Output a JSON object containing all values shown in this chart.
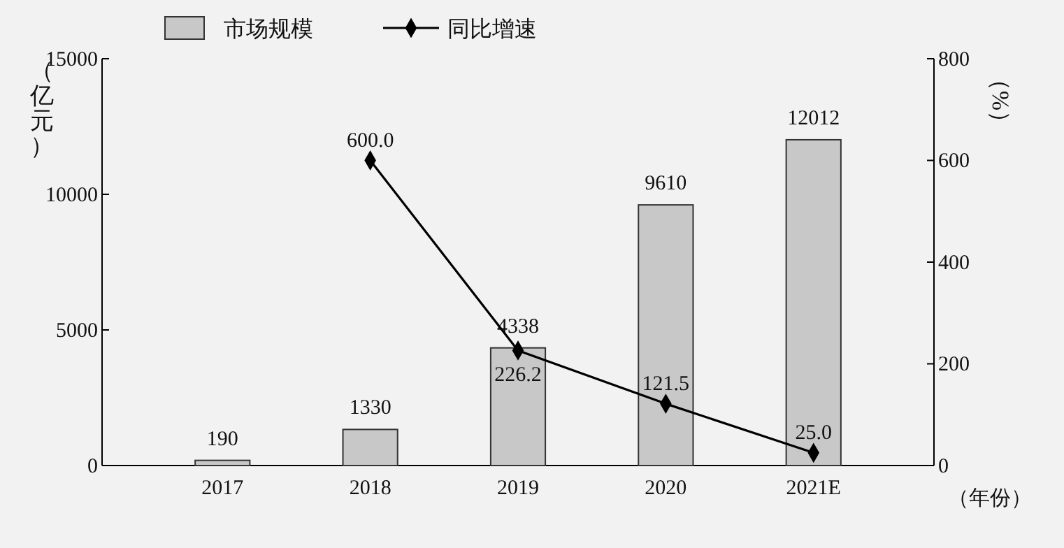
{
  "chart_data": {
    "type": "bar",
    "categories": [
      "2017",
      "2018",
      "2019",
      "2020",
      "2021E"
    ],
    "ylabel": "（亿元）",
    "y2label": "（%）",
    "xlabel": "（年份）",
    "series": [
      {
        "name": "市场规模",
        "color": "#c8c8c8",
        "values": [
          190,
          1330,
          4338,
          9610,
          12012
        ]
      },
      {
        "name": "同比增速",
        "type": "line",
        "axis": "y2",
        "color": "#000000",
        "values": [
          null,
          600.0,
          226.2,
          121.5,
          25.0
        ],
        "value_labels": [
          null,
          "600.0",
          "226.2",
          "121.5",
          "25.0"
        ]
      }
    ],
    "ylim": [
      0,
      15000
    ],
    "yticks": [
      0,
      5000,
      10000,
      15000
    ],
    "y2lim": [
      0,
      800
    ],
    "y2ticks": [
      0,
      200,
      400,
      600,
      800
    ],
    "data_labels": true,
    "legend": "top",
    "marker": "diamond",
    "grid": false
  }
}
